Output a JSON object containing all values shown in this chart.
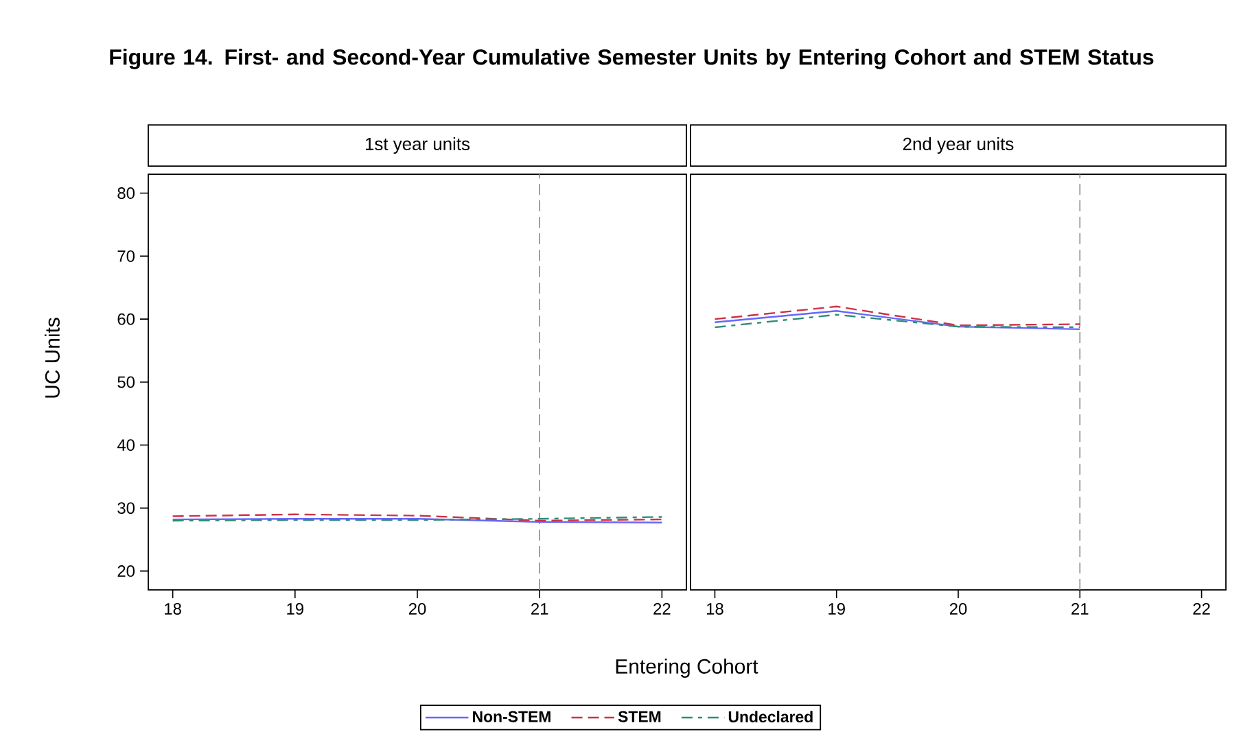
{
  "chart_data": [
    {
      "type": "line",
      "title": "Figure 14. First- and Second-Year Cumulative Semester Units by Entering Cohort and STEM Status",
      "subtitle": "1st year units",
      "xlabel": "Entering Cohort",
      "ylabel": "UC Units",
      "x": [
        18,
        19,
        20,
        21,
        22
      ],
      "xlim": [
        17.8,
        22.2
      ],
      "ylim": [
        17,
        83
      ],
      "xticks": [
        18,
        19,
        20,
        21,
        22
      ],
      "yticks": [
        20,
        30,
        40,
        50,
        60,
        70,
        80
      ],
      "legend": "bottom",
      "ref_lines": [
        {
          "axis": "x",
          "value": 21,
          "color": "#888888",
          "line_style": "dashed"
        }
      ],
      "series": [
        {
          "name": "Non-STEM",
          "color": "#6666ff",
          "line_style": "solid",
          "values": [
            28.2,
            28.3,
            28.3,
            27.8,
            27.7
          ]
        },
        {
          "name": "STEM",
          "color": "#cc3344",
          "line_style": "dashed",
          "values": [
            28.7,
            29.0,
            28.8,
            28.0,
            28.2
          ]
        },
        {
          "name": "Undeclared",
          "color": "#2e8b7a",
          "line_style": "dashdot",
          "values": [
            28.0,
            28.1,
            28.1,
            28.3,
            28.6
          ]
        }
      ]
    },
    {
      "type": "line",
      "subtitle": "2nd year units",
      "tick_labels": "x",
      "x": [
        18,
        19,
        20,
        21
      ],
      "xlim": [
        17.8,
        22.2
      ],
      "ylim": [
        17,
        83
      ],
      "xticks": [
        18,
        19,
        20,
        21,
        22
      ],
      "ref_lines": [
        {
          "axis": "x",
          "value": 21,
          "color": "#888888",
          "line_style": "dashed"
        }
      ],
      "series": [
        {
          "color": "#6666ff",
          "line_style": "solid",
          "values": [
            59.5,
            61.3,
            58.8,
            58.4
          ]
        },
        {
          "color": "#cc3344",
          "line_style": "dashed",
          "values": [
            60.0,
            62.0,
            59.0,
            59.2
          ]
        },
        {
          "color": "#2e8b7a",
          "line_style": "dashdot",
          "values": [
            58.7,
            60.7,
            58.8,
            58.7
          ]
        }
      ]
    }
  ]
}
